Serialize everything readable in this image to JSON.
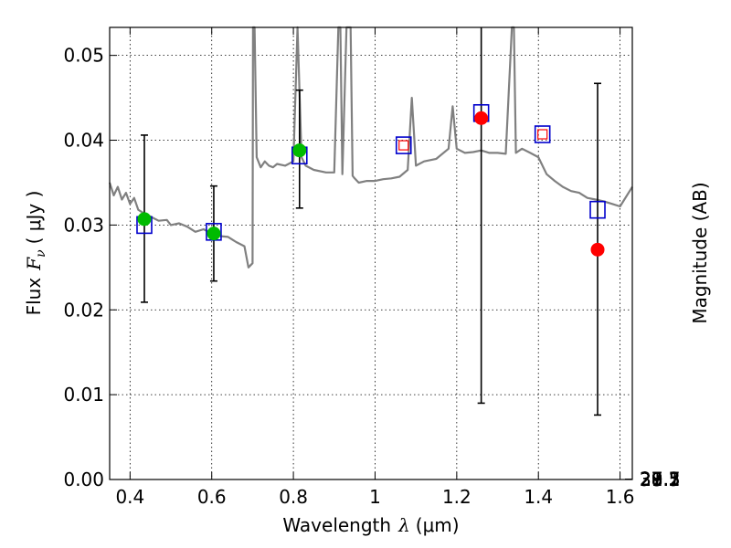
{
  "chart_data": {
    "type": "scatter",
    "xlabel_prefix": "Wavelength",
    "xlabel_symbol": "λ",
    "xlabel_unit": "(μm)",
    "ylabel_prefix": "Flux",
    "ylabel_symbol": "F",
    "ylabel_subscript": "ν",
    "ylabel_unit": "( μJy )",
    "y2label": "Magnitude (AB)",
    "xlim": [
      0.35,
      1.63
    ],
    "ylim": [
      0.0,
      0.0533
    ],
    "xticks": [
      0.4,
      0.6,
      0.8,
      1.0,
      1.2,
      1.4,
      1.6
    ],
    "xtick_labels": [
      "0.4",
      "0.6",
      "0.8",
      "1",
      "1.2",
      "1.4",
      "1.6"
    ],
    "yticks": [
      0.0,
      0.01,
      0.02,
      0.03,
      0.04,
      0.05
    ],
    "ytick_labels": [
      "0.00",
      "0.01",
      "0.02",
      "0.03",
      "0.04",
      "0.05"
    ],
    "mag_ticks": [
      27.1,
      27.3,
      27.5,
      27.7,
      28,
      28.2,
      28.5,
      29,
      29.5,
      30,
      31
    ],
    "mag_tick_labels": [
      "27.1",
      "27.3",
      "27.5",
      "27.7",
      "28",
      "28.2",
      "28.5",
      "29",
      "29.5",
      "30",
      "31"
    ],
    "grid": true,
    "colors": {
      "model": "#808080",
      "model_square": "#0000cc",
      "detection": "#00bb00",
      "upper_limit": "#ff0000",
      "errorbar": "#000000"
    },
    "model_spectrum": {
      "x": [
        0.35,
        0.36,
        0.37,
        0.38,
        0.39,
        0.4,
        0.41,
        0.42,
        0.43,
        0.44,
        0.45,
        0.47,
        0.49,
        0.5,
        0.52,
        0.54,
        0.56,
        0.58,
        0.6,
        0.62,
        0.64,
        0.66,
        0.68,
        0.69,
        0.7,
        0.701,
        0.705,
        0.71,
        0.72,
        0.73,
        0.74,
        0.75,
        0.76,
        0.78,
        0.8,
        0.81,
        0.82,
        0.83,
        0.85,
        0.88,
        0.9,
        0.91,
        0.915,
        0.92,
        0.93,
        0.94,
        0.945,
        0.95,
        0.96,
        0.98,
        1.0,
        1.02,
        1.04,
        1.06,
        1.08,
        1.09,
        1.1,
        1.12,
        1.15,
        1.18,
        1.19,
        1.2,
        1.22,
        1.24,
        1.26,
        1.28,
        1.3,
        1.32,
        1.335,
        1.34,
        1.345,
        1.36,
        1.38,
        1.4,
        1.42,
        1.44,
        1.46,
        1.48,
        1.5,
        1.52,
        1.54,
        1.56,
        1.58,
        1.6,
        1.63
      ],
      "y": [
        0.035,
        0.0335,
        0.0345,
        0.033,
        0.0338,
        0.0325,
        0.0332,
        0.0318,
        0.0315,
        0.0312,
        0.031,
        0.0305,
        0.0306,
        0.03,
        0.0302,
        0.0298,
        0.0292,
        0.0295,
        0.029,
        0.0287,
        0.0286,
        0.028,
        0.0275,
        0.025,
        0.0255,
        0.0533,
        0.0533,
        0.038,
        0.0368,
        0.0375,
        0.037,
        0.0368,
        0.0372,
        0.037,
        0.0375,
        0.0533,
        0.038,
        0.037,
        0.0365,
        0.0362,
        0.0362,
        0.0533,
        0.0533,
        0.036,
        0.0533,
        0.0533,
        0.0358,
        0.0355,
        0.035,
        0.0352,
        0.0352,
        0.0354,
        0.0355,
        0.0357,
        0.0365,
        0.045,
        0.037,
        0.0375,
        0.0378,
        0.039,
        0.044,
        0.039,
        0.0385,
        0.0386,
        0.0388,
        0.0385,
        0.0385,
        0.0384,
        0.0533,
        0.0533,
        0.0385,
        0.039,
        0.0385,
        0.038,
        0.036,
        0.0352,
        0.0345,
        0.034,
        0.0338,
        0.0332,
        0.033,
        0.0328,
        0.0325,
        0.0322,
        0.0345
      ]
    },
    "model_squares": [
      {
        "x": 0.435,
        "y": 0.03
      },
      {
        "x": 0.605,
        "y": 0.0292
      },
      {
        "x": 0.815,
        "y": 0.0382
      },
      {
        "x": 1.07,
        "y": 0.0394
      },
      {
        "x": 1.26,
        "y": 0.0432
      },
      {
        "x": 1.41,
        "y": 0.0407
      },
      {
        "x": 1.545,
        "y": 0.0318
      }
    ],
    "detections": [
      {
        "x": 0.435,
        "y": 0.0307,
        "yerr_low": 0.0209,
        "yerr_high": 0.0406
      },
      {
        "x": 0.605,
        "y": 0.029,
        "yerr_low": 0.0234,
        "yerr_high": 0.0346
      },
      {
        "x": 0.815,
        "y": 0.0388,
        "yerr_low": 0.032,
        "yerr_high": 0.0459
      }
    ],
    "upper_limits": [
      {
        "x": 1.07,
        "y": 0.0394
      },
      {
        "x": 1.41,
        "y": 0.0407
      }
    ],
    "nondetections": [
      {
        "x": 1.26,
        "y": 0.0426,
        "yerr_low": 0.009,
        "yerr_high": 0.0533
      },
      {
        "x": 1.545,
        "y": 0.0271,
        "yerr_low": 0.0076,
        "yerr_high": 0.0467
      }
    ]
  }
}
